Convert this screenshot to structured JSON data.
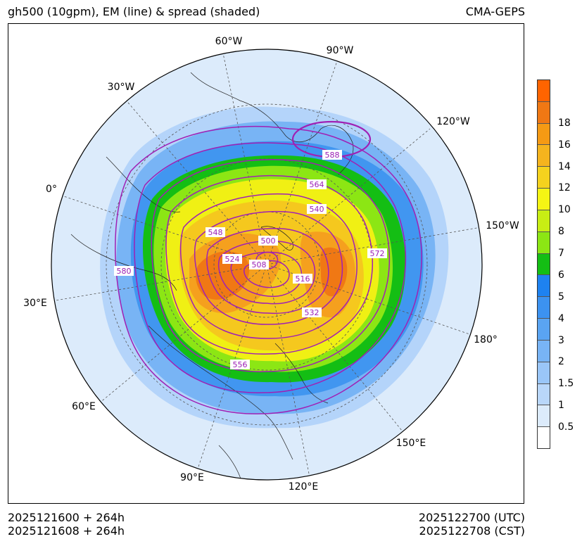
{
  "title": {
    "left": "gh500 (10gpm), EM (line) & spread (shaded)",
    "right": "CMA-GEPS"
  },
  "map": {
    "longitude_labels": [
      "60°W",
      "90°W",
      "30°W",
      "120°W",
      "0°",
      "150°W",
      "30°E",
      "180°",
      "60°E",
      "150°E",
      "90°E",
      "120°E"
    ],
    "contour_labels": [
      "588",
      "564",
      "540",
      "548",
      "524",
      "500",
      "508",
      "516",
      "532",
      "572",
      "580",
      "556"
    ],
    "colors": {
      "contour": "#a020b4",
      "coast": "#222222",
      "spread_0_5": "#ffffff",
      "spread_1": "#dcebfb",
      "spread_2": "#b4d4fa",
      "spread_3": "#78b4f5",
      "spread_4": "#4196f0",
      "spread_5": "#1e82f0",
      "spread_6": "#14be14",
      "spread_7": "#8ce614",
      "spread_8": "#f0f014",
      "spread_10": "#f5c81e",
      "spread_12": "#f5a01e",
      "spread_14": "#f07814",
      "spread_18": "#ff6400"
    }
  },
  "colorbar": {
    "labels": [
      "0.5",
      "1",
      "1.5",
      "2",
      "3",
      "4",
      "5",
      "6",
      "7",
      "8",
      "10",
      "12",
      "14",
      "16",
      "18"
    ],
    "colors": [
      "#ffffff",
      "#dcebfb",
      "#b9d7fa",
      "#9ac6f8",
      "#78b4f5",
      "#5aa4f2",
      "#3c92f0",
      "#1e82f0",
      "#14be14",
      "#8ce614",
      "#c8ee14",
      "#f5f514",
      "#f5d21e",
      "#f5b41e",
      "#f59a14",
      "#f07814",
      "#ff6400"
    ]
  },
  "footer": {
    "init_utc": "2025121600 + 264h",
    "init_cst": "2025121608 + 264h",
    "valid_utc": "2025122700 (UTC)",
    "valid_cst": "2025122708 (CST)"
  }
}
